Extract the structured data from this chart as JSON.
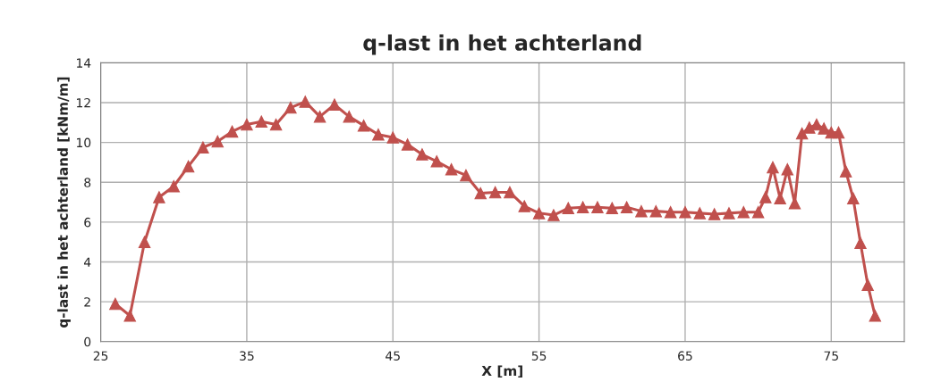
{
  "chart_data": {
    "type": "line",
    "title": "q-last in het achterland",
    "xlabel": "X [m]",
    "ylabel": "q-last in het achterland [kNm/m]",
    "x": [
      26,
      27,
      28,
      29,
      30,
      31,
      32,
      33,
      34,
      35,
      36,
      37,
      38,
      39,
      40,
      41,
      42,
      43,
      44,
      45,
      46,
      47,
      48,
      49,
      50,
      51,
      52,
      53,
      54,
      55,
      56,
      57,
      58,
      59,
      60,
      61,
      62,
      63,
      64,
      65,
      66,
      67,
      68,
      69,
      70,
      70.5,
      71,
      71.5,
      72,
      72.5,
      73,
      73.5,
      74,
      74.5,
      75,
      75.5,
      76,
      76.5,
      77,
      77.5,
      78
    ],
    "series": [
      {
        "color": "#c0504d",
        "values": [
          1.9,
          1.3,
          5.0,
          7.25,
          7.8,
          8.8,
          9.75,
          10.05,
          10.55,
          10.9,
          11.05,
          10.9,
          11.75,
          12.05,
          11.3,
          11.9,
          11.3,
          10.85,
          10.4,
          10.25,
          9.9,
          9.4,
          9.05,
          8.65,
          8.35,
          7.45,
          7.5,
          7.5,
          6.8,
          6.45,
          6.35,
          6.7,
          6.75,
          6.75,
          6.7,
          6.75,
          6.55,
          6.55,
          6.5,
          6.5,
          6.45,
          6.4,
          6.45,
          6.5,
          6.5,
          7.25,
          8.75,
          7.2,
          8.65,
          6.95,
          10.45,
          10.75,
          10.9,
          10.7,
          10.5,
          10.5,
          8.55,
          7.2,
          4.95,
          2.85,
          1.3
        ]
      }
    ],
    "xlim": [
      25,
      80
    ],
    "xticks": [
      25,
      35,
      45,
      55,
      65,
      75
    ],
    "ylim": [
      0,
      14
    ],
    "yticks": [
      0,
      2,
      4,
      6,
      8,
      10,
      12,
      14
    ],
    "grid": true,
    "marker": "triangle",
    "line_style": "solid"
  }
}
